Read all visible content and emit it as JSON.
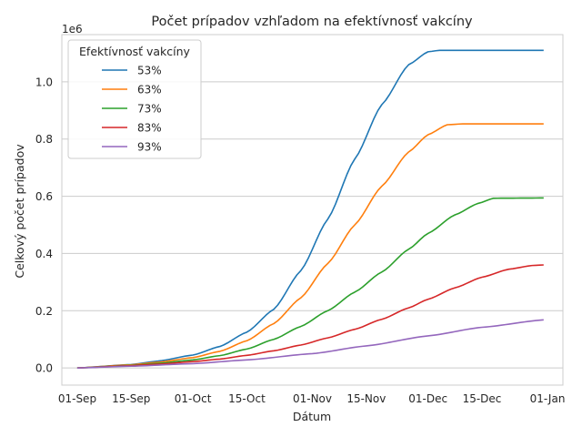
{
  "chart_data": {
    "type": "line",
    "title": "Počet prípadov vzhľadom na efektívnosť vakcíny",
    "xlabel": "Dátum",
    "ylabel": "Celkový počet prípadov",
    "y_offset_label": "1e6",
    "y_scale_factor": 1000000,
    "xlim": [
      "2021-08-28",
      "2022-01-05"
    ],
    "ylim": [
      -0.06,
      1.165
    ],
    "x_ticks": [
      {
        "date": "2021-09-01",
        "label": "01-Sep"
      },
      {
        "date": "2021-09-15",
        "label": "15-Sep"
      },
      {
        "date": "2021-10-01",
        "label": "01-Oct"
      },
      {
        "date": "2021-10-15",
        "label": "15-Oct"
      },
      {
        "date": "2021-11-01",
        "label": "01-Nov"
      },
      {
        "date": "2021-11-15",
        "label": "15-Nov"
      },
      {
        "date": "2021-12-01",
        "label": "01-Dec"
      },
      {
        "date": "2021-12-15",
        "label": "15-Dec"
      },
      {
        "date": "2022-01-01",
        "label": "01-Jan"
      }
    ],
    "y_ticks": [
      0.0,
      0.2,
      0.4,
      0.6,
      0.8,
      1.0
    ],
    "y_tick_labels": [
      "0.0",
      "0.2",
      "0.4",
      "0.6",
      "0.8",
      "1.0"
    ],
    "grid": "horizontal",
    "legend": {
      "title": "Efektívnosť vakcíny",
      "placement": "top-left"
    },
    "series": [
      {
        "name": "53%",
        "color": "#1f77b4",
        "points": [
          [
            "2021-09-01",
            0.0
          ],
          [
            "2021-09-15",
            0.012
          ],
          [
            "2021-09-22",
            0.024
          ],
          [
            "2021-10-01",
            0.045
          ],
          [
            "2021-10-08",
            0.075
          ],
          [
            "2021-10-15",
            0.125
          ],
          [
            "2021-10-22",
            0.205
          ],
          [
            "2021-10-29",
            0.34
          ],
          [
            "2021-11-05",
            0.52
          ],
          [
            "2021-11-12",
            0.73
          ],
          [
            "2021-11-19",
            0.92
          ],
          [
            "2021-11-26",
            1.06
          ],
          [
            "2021-12-01",
            1.105
          ],
          [
            "2021-12-04",
            1.11
          ],
          [
            "2021-12-31",
            1.11
          ]
        ]
      },
      {
        "name": "63%",
        "color": "#ff7f0e",
        "points": [
          [
            "2021-09-01",
            0.0
          ],
          [
            "2021-09-15",
            0.011
          ],
          [
            "2021-09-22",
            0.02
          ],
          [
            "2021-10-01",
            0.036
          ],
          [
            "2021-10-08",
            0.058
          ],
          [
            "2021-10-15",
            0.095
          ],
          [
            "2021-10-22",
            0.155
          ],
          [
            "2021-10-29",
            0.245
          ],
          [
            "2021-11-05",
            0.365
          ],
          [
            "2021-11-12",
            0.5
          ],
          [
            "2021-11-19",
            0.635
          ],
          [
            "2021-11-26",
            0.755
          ],
          [
            "2021-12-01",
            0.815
          ],
          [
            "2021-12-06",
            0.85
          ],
          [
            "2021-12-10",
            0.853
          ],
          [
            "2021-12-31",
            0.853
          ]
        ]
      },
      {
        "name": "73%",
        "color": "#2ca02c",
        "points": [
          [
            "2021-09-01",
            0.0
          ],
          [
            "2021-09-15",
            0.009
          ],
          [
            "2021-09-22",
            0.016
          ],
          [
            "2021-10-01",
            0.028
          ],
          [
            "2021-10-08",
            0.043
          ],
          [
            "2021-10-15",
            0.066
          ],
          [
            "2021-10-22",
            0.1
          ],
          [
            "2021-10-29",
            0.145
          ],
          [
            "2021-11-05",
            0.2
          ],
          [
            "2021-11-12",
            0.265
          ],
          [
            "2021-11-19",
            0.335
          ],
          [
            "2021-11-26",
            0.415
          ],
          [
            "2021-12-01",
            0.47
          ],
          [
            "2021-12-08",
            0.535
          ],
          [
            "2021-12-14",
            0.575
          ],
          [
            "2021-12-18",
            0.593
          ],
          [
            "2021-12-31",
            0.594
          ]
        ]
      },
      {
        "name": "83%",
        "color": "#d62728",
        "points": [
          [
            "2021-09-01",
            0.0
          ],
          [
            "2021-09-15",
            0.008
          ],
          [
            "2021-09-22",
            0.013
          ],
          [
            "2021-10-01",
            0.022
          ],
          [
            "2021-10-08",
            0.031
          ],
          [
            "2021-10-15",
            0.044
          ],
          [
            "2021-10-22",
            0.06
          ],
          [
            "2021-10-29",
            0.08
          ],
          [
            "2021-11-05",
            0.105
          ],
          [
            "2021-11-12",
            0.135
          ],
          [
            "2021-11-19",
            0.17
          ],
          [
            "2021-11-26",
            0.21
          ],
          [
            "2021-12-01",
            0.24
          ],
          [
            "2021-12-08",
            0.28
          ],
          [
            "2021-12-15",
            0.317
          ],
          [
            "2021-12-22",
            0.345
          ],
          [
            "2021-12-28",
            0.358
          ],
          [
            "2021-12-31",
            0.36
          ]
        ]
      },
      {
        "name": "93%",
        "color": "#9467bd",
        "points": [
          [
            "2021-09-01",
            0.0
          ],
          [
            "2021-09-15",
            0.006
          ],
          [
            "2021-10-01",
            0.015
          ],
          [
            "2021-10-15",
            0.028
          ],
          [
            "2021-11-01",
            0.05
          ],
          [
            "2021-11-15",
            0.077
          ],
          [
            "2021-12-01",
            0.112
          ],
          [
            "2021-12-15",
            0.142
          ],
          [
            "2021-12-31",
            0.168
          ]
        ]
      }
    ]
  }
}
